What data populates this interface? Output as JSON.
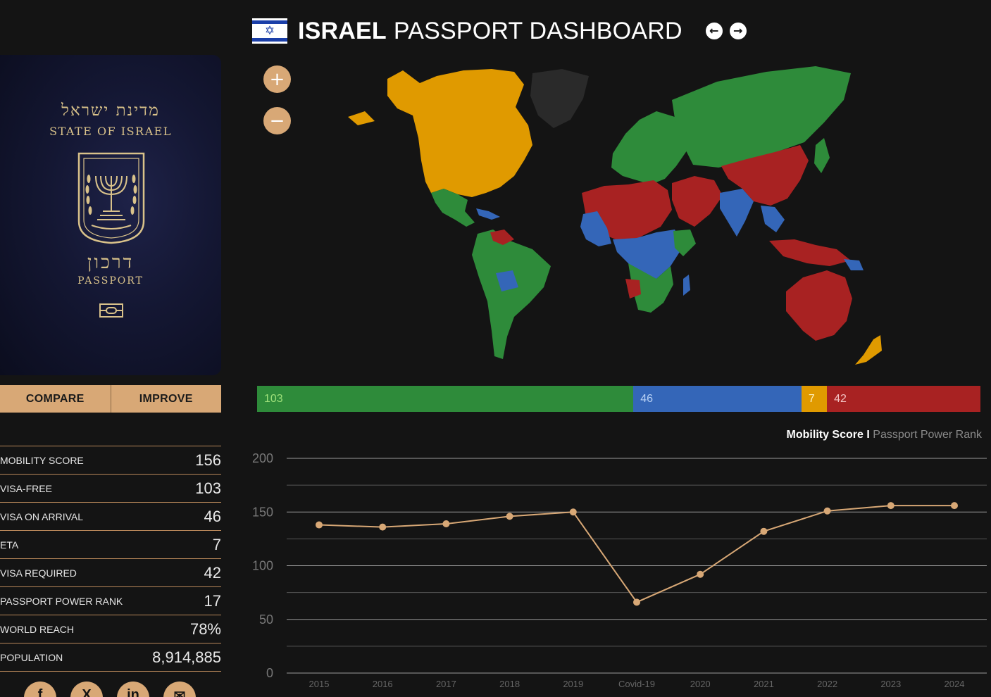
{
  "header": {
    "country": "ISRAEL",
    "title_rest": "PASSPORT DASHBOARD",
    "prev_icon": "arrow-left-icon",
    "next_icon": "arrow-right-icon"
  },
  "passport": {
    "hebrew_state": "מדינת ישראל",
    "state": "STATE OF ISRAEL",
    "hebrew_passport": "דרכון",
    "passport": "PASSPORT"
  },
  "map": {
    "zoom_in": "+",
    "zoom_out": "−",
    "colors": {
      "visa_free": "#2e8b3a",
      "visa_on_arrival": "#3466b8",
      "eta": "#e09a00",
      "visa_required": "#a82222",
      "self": "#2a2a2a"
    }
  },
  "buttons": {
    "compare": "COMPARE",
    "improve": "IMPROVE"
  },
  "stats": [
    {
      "label": "MOBILITY SCORE",
      "value": "156"
    },
    {
      "label": "VISA-FREE",
      "value": "103"
    },
    {
      "label": "VISA ON ARRIVAL",
      "value": "46"
    },
    {
      "label": "ETA",
      "value": "7"
    },
    {
      "label": "VISA REQUIRED",
      "value": "42"
    },
    {
      "label": "PASSPORT POWER RANK",
      "value": "17"
    },
    {
      "label": "WORLD REACH",
      "value": "78%"
    },
    {
      "label": "POPULATION",
      "value": "8,914,885"
    }
  ],
  "distribution": [
    {
      "key": "visa_free",
      "value": 103,
      "label": "103",
      "color": "#2e8b3a",
      "text_color": "#9ee07a"
    },
    {
      "key": "visa_on_arrival",
      "value": 46,
      "label": "46",
      "color": "#3466b8",
      "text_color": "#b9d2f5"
    },
    {
      "key": "eta",
      "value": 7,
      "label": "7",
      "color": "#e09a00",
      "text_color": "#fff3c4"
    },
    {
      "key": "visa_required",
      "value": 42,
      "label": "42",
      "color": "#a82222",
      "text_color": "#f3c3c3"
    }
  ],
  "chart_legend": {
    "active": "Mobility Score",
    "separator": "I",
    "inactive": "Passport Power Rank"
  },
  "chart_data": {
    "type": "line",
    "categories": [
      "2015",
      "2016",
      "2017",
      "2018",
      "2019",
      "Covid-19",
      "2020",
      "2021",
      "2022",
      "2023",
      "2024"
    ],
    "series": [
      {
        "name": "Mobility Score",
        "values": [
          138,
          136,
          139,
          146,
          150,
          66,
          92,
          132,
          151,
          156,
          156
        ]
      }
    ],
    "ylim": [
      0,
      200
    ],
    "yticks": [
      "0",
      "50",
      "100",
      "150",
      "200"
    ],
    "grid": true,
    "line_color": "#d8a876"
  },
  "socials": [
    {
      "name": "facebook-icon",
      "glyph": "f"
    },
    {
      "name": "x-icon",
      "glyph": "X"
    },
    {
      "name": "linkedin-icon",
      "glyph": "in"
    },
    {
      "name": "mail-icon",
      "glyph": "✉"
    }
  ]
}
